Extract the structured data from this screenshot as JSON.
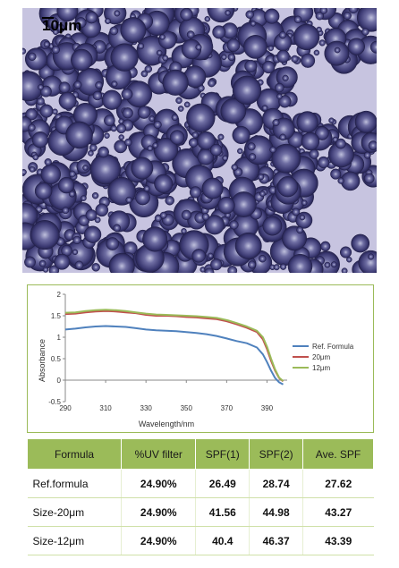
{
  "micrograph": {
    "scale_label": "10μm",
    "description_colors": {
      "background": "#c7c4e0",
      "sphere": "#3c3a73",
      "highlight": "#e8e8f4"
    }
  },
  "chart_data": {
    "type": "line",
    "title": "",
    "xlabel": "Wavelength/nm",
    "ylabel": "Absorbance",
    "xlim": [
      290,
      400
    ],
    "ylim": [
      -0.5,
      2
    ],
    "xticks": [
      290,
      310,
      330,
      350,
      370,
      390
    ],
    "yticks": [
      -0.5,
      0,
      0.5,
      1,
      1.5,
      2
    ],
    "grid": false,
    "legend_position": "right",
    "series": [
      {
        "name": "Ref. Formula",
        "color": "#4f81bd",
        "x": [
          290,
          295,
          300,
          305,
          310,
          315,
          320,
          325,
          330,
          335,
          340,
          345,
          350,
          355,
          360,
          365,
          370,
          375,
          380,
          385,
          388,
          390,
          392,
          394,
          396,
          398
        ],
        "y": [
          1.18,
          1.2,
          1.23,
          1.25,
          1.26,
          1.25,
          1.24,
          1.21,
          1.18,
          1.16,
          1.15,
          1.14,
          1.12,
          1.1,
          1.07,
          1.03,
          0.97,
          0.91,
          0.86,
          0.76,
          0.6,
          0.42,
          0.22,
          0.05,
          -0.05,
          -0.1
        ]
      },
      {
        "name": "20μm",
        "color": "#c0504d",
        "x": [
          290,
          295,
          300,
          305,
          310,
          315,
          320,
          325,
          330,
          335,
          340,
          345,
          350,
          355,
          360,
          365,
          370,
          375,
          380,
          385,
          388,
          390,
          392,
          394,
          396,
          398
        ],
        "y": [
          1.54,
          1.55,
          1.58,
          1.6,
          1.61,
          1.6,
          1.58,
          1.56,
          1.52,
          1.5,
          1.5,
          1.49,
          1.47,
          1.46,
          1.44,
          1.42,
          1.37,
          1.3,
          1.22,
          1.12,
          0.95,
          0.72,
          0.45,
          0.22,
          0.05,
          -0.03
        ]
      },
      {
        "name": "12μm",
        "color": "#9bbb59",
        "x": [
          290,
          295,
          300,
          305,
          310,
          315,
          320,
          325,
          330,
          335,
          340,
          345,
          350,
          355,
          360,
          365,
          370,
          375,
          380,
          385,
          388,
          390,
          392,
          394,
          396,
          398
        ],
        "y": [
          1.57,
          1.58,
          1.61,
          1.63,
          1.64,
          1.63,
          1.61,
          1.58,
          1.55,
          1.53,
          1.52,
          1.51,
          1.5,
          1.49,
          1.47,
          1.45,
          1.4,
          1.33,
          1.25,
          1.15,
          1.0,
          0.78,
          0.5,
          0.25,
          0.06,
          -0.02
        ]
      }
    ]
  },
  "table": {
    "headers": [
      "Formula",
      "%UV filter",
      "SPF(1)",
      "SPF(2)",
      "Ave. SPF"
    ],
    "rows": [
      [
        "Ref.formula",
        "24.90%",
        "26.49",
        "28.74",
        "27.62"
      ],
      [
        "Size-20μm",
        "24.90%",
        "41.56",
        "44.98",
        "43.27"
      ],
      [
        "Size-12μm",
        "24.90%",
        "40.4",
        "46.37",
        "43.39"
      ]
    ],
    "header_color": "#9bbb59"
  }
}
